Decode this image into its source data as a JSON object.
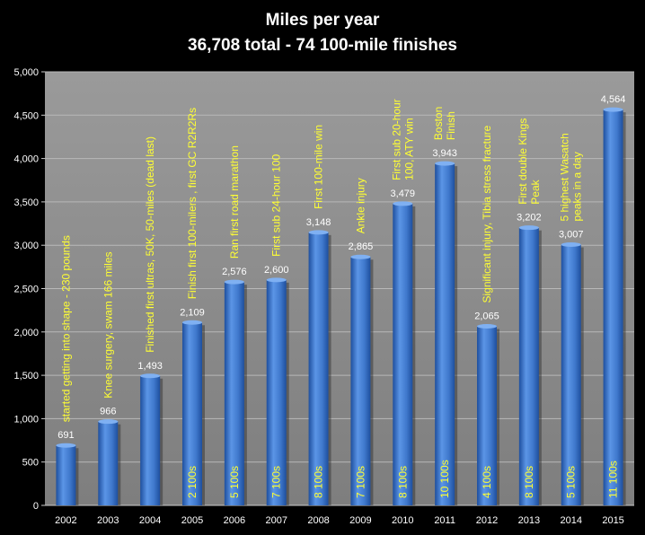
{
  "colors": {
    "page_background": "#000000",
    "plot_background": "#8a8a8a",
    "bar": "#4f86d6",
    "bar_dark": "#1e4f9e",
    "annotation_text": "#ffff33",
    "axis_text": "#ffffff"
  },
  "chart_data": {
    "type": "bar",
    "title": "Miles per year",
    "subtitle": "36,708 total  - 74 100-mile finishes",
    "xlabel": "",
    "ylabel": "",
    "ylim": [
      0,
      5000
    ],
    "yticks": [
      "0",
      "500",
      "1,000",
      "1,500",
      "2,000",
      "2,500",
      "3,000",
      "3,500",
      "4,000",
      "4,500",
      "5,000"
    ],
    "ytick_values": [
      0,
      500,
      1000,
      1500,
      2000,
      2500,
      3000,
      3500,
      4000,
      4500,
      5000
    ],
    "grid": true,
    "legend": "none",
    "categories": [
      "2002",
      "2003",
      "2004",
      "2005",
      "2006",
      "2007",
      "2008",
      "2009",
      "2010",
      "2011",
      "2012",
      "2013",
      "2014",
      "2015"
    ],
    "values": [
      691,
      966,
      1493,
      2109,
      2576,
      2600,
      3148,
      2865,
      3479,
      3943,
      2065,
      3202,
      3007,
      4564
    ],
    "value_labels": [
      "691",
      "966",
      "1,493",
      "2,109",
      "2,576",
      "2,600",
      "3,148",
      "2,865",
      "3,479",
      "3,943",
      "2,065",
      "3,202",
      "3,007",
      "4,564"
    ],
    "annotations_above": [
      [
        "started getting into shape - 230 pounds"
      ],
      [
        "Knee surgery, swam 166 miles"
      ],
      [
        "Finished first ultras, 50K, 50-miles (dead last)"
      ],
      [
        "Finish first 100-milers , first GC R2R2Rs"
      ],
      [
        "Ran first road marathon"
      ],
      [
        "First sub 24-hour 100"
      ],
      [
        "First 100-mile win"
      ],
      [
        "Ankle injury"
      ],
      [
        "First sub 20-hour",
        "100, ATY win"
      ],
      [
        "Boston",
        "Finish"
      ],
      [
        "Significant injury, Tibia stress fracture"
      ],
      [
        "First double Kings",
        "Peak"
      ],
      [
        "5 highest Wasatch",
        "peaks in a day"
      ],
      []
    ],
    "annotations_in_bar": [
      "",
      "",
      "",
      "2 100s",
      "5 100s",
      "7 100s",
      "8 100s",
      "7 100s",
      "8 100s",
      "10 100s",
      "4 100s",
      "8 100s",
      "5 100s",
      "11 100s"
    ]
  }
}
